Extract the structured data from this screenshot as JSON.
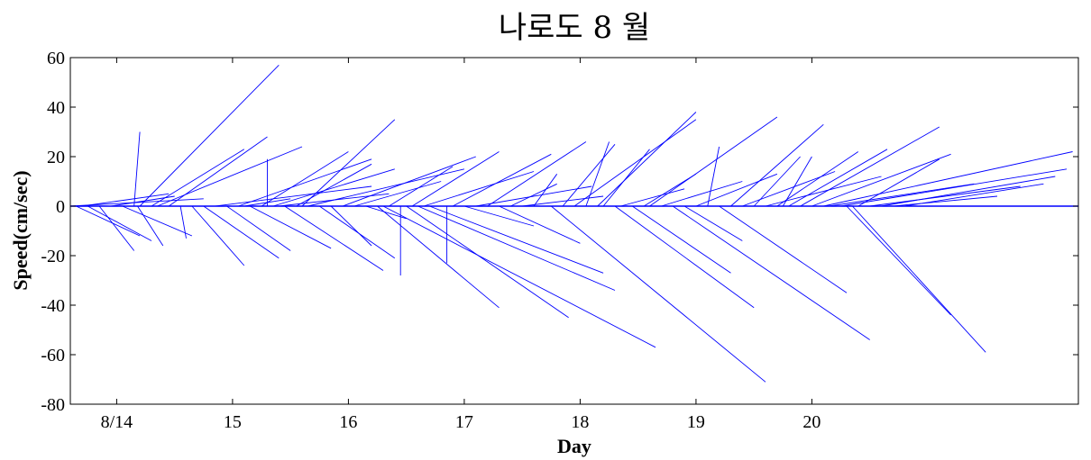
{
  "chart_data": {
    "type": "line",
    "subtype": "stick-vector",
    "title": "나로도 8 월",
    "xlabel": "Day",
    "ylabel": "Speed(cm/sec)",
    "xlim": [
      13.6,
      22.3
    ],
    "ylim": [
      -80,
      60
    ],
    "x_ticks": [
      {
        "value": 14,
        "label": "8/14"
      },
      {
        "value": 15,
        "label": "15"
      },
      {
        "value": 16,
        "label": "16"
      },
      {
        "value": 17,
        "label": "17"
      },
      {
        "value": 18,
        "label": "18"
      },
      {
        "value": 19,
        "label": "19"
      },
      {
        "value": 20,
        "label": "20"
      }
    ],
    "y_ticks": [
      {
        "value": 60,
        "label": "60"
      },
      {
        "value": 40,
        "label": "40"
      },
      {
        "value": 20,
        "label": "20"
      },
      {
        "value": 0,
        "label": "0"
      },
      {
        "value": -20,
        "label": "-20"
      },
      {
        "value": -40,
        "label": "-40"
      },
      {
        "value": -60,
        "label": "-60"
      },
      {
        "value": -80,
        "label": "-80"
      }
    ],
    "grid": false,
    "line_color": "#0000ff",
    "series": [
      {
        "values": [
          {
            "x": 13.6,
            "x2": 14.75,
            "y2": 3
          },
          {
            "x": 13.65,
            "x2": 14.2,
            "y2": -12
          },
          {
            "x": 13.7,
            "x2": 14.45,
            "y2": 5
          },
          {
            "x": 13.75,
            "x2": 14.3,
            "y2": -14
          },
          {
            "x": 13.85,
            "x2": 14.15,
            "y2": -18
          },
          {
            "x": 13.95,
            "x2": 14.5,
            "y2": 4
          },
          {
            "x": 14.05,
            "x2": 14.65,
            "y2": -12
          },
          {
            "x": 14.15,
            "x2": 14.2,
            "y2": 30
          },
          {
            "x": 14.18,
            "x2": 14.4,
            "y2": -16
          },
          {
            "x": 14.2,
            "x2": 15.4,
            "y2": 57
          },
          {
            "x": 14.3,
            "x2": 15.1,
            "y2": 23
          },
          {
            "x": 14.35,
            "x2": 15.6,
            "y2": 24
          },
          {
            "x": 14.45,
            "x2": 15.3,
            "y2": 28
          },
          {
            "x": 14.55,
            "x2": 14.6,
            "y2": -13
          },
          {
            "x": 14.65,
            "x2": 15.1,
            "y2": -24
          },
          {
            "x": 14.75,
            "x2": 15.4,
            "y2": -21
          },
          {
            "x": 14.85,
            "x2": 16.2,
            "y2": 8
          },
          {
            "x": 14.95,
            "x2": 15.5,
            "y2": -18
          },
          {
            "x": 15.05,
            "x2": 16.2,
            "y2": 19
          },
          {
            "x": 15.1,
            "x2": 15.5,
            "y2": 3
          },
          {
            "x": 15.15,
            "x2": 15.85,
            "y2": -17
          },
          {
            "x": 15.25,
            "x2": 16.0,
            "y2": 22
          },
          {
            "x": 15.3,
            "x2": 15.3,
            "y2": 19
          },
          {
            "x": 15.35,
            "x2": 16.4,
            "y2": 15
          },
          {
            "x": 15.4,
            "x2": 16.35,
            "y2": 5
          },
          {
            "x": 15.45,
            "x2": 16.3,
            "y2": -26
          },
          {
            "x": 15.55,
            "x2": 16.2,
            "y2": 17
          },
          {
            "x": 15.6,
            "x2": 16.4,
            "y2": 35
          },
          {
            "x": 15.65,
            "x2": 17.0,
            "y2": 15
          },
          {
            "x": 15.75,
            "x2": 16.4,
            "y2": -21
          },
          {
            "x": 15.85,
            "x2": 16.2,
            "y2": -16
          },
          {
            "x": 15.95,
            "x2": 17.1,
            "y2": 20
          },
          {
            "x": 16.05,
            "x2": 16.8,
            "y2": 10
          },
          {
            "x": 16.15,
            "x2": 16.5,
            "y2": -5
          },
          {
            "x": 16.25,
            "x2": 17.3,
            "y2": -41
          },
          {
            "x": 16.3,
            "x2": 18.65,
            "y2": -57
          },
          {
            "x": 16.35,
            "x2": 16.9,
            "y2": 16
          },
          {
            "x": 16.45,
            "x2": 16.45,
            "y2": -28
          },
          {
            "x": 16.5,
            "x2": 17.9,
            "y2": -45
          },
          {
            "x": 16.55,
            "x2": 17.3,
            "y2": 22
          },
          {
            "x": 16.6,
            "x2": 18.3,
            "y2": -34
          },
          {
            "x": 16.65,
            "x2": 17.6,
            "y2": 14
          },
          {
            "x": 16.7,
            "x2": 18.2,
            "y2": -27
          },
          {
            "x": 16.85,
            "x2": 16.85,
            "y2": -23
          },
          {
            "x": 16.9,
            "x2": 17.75,
            "y2": 21
          },
          {
            "x": 17.0,
            "x2": 17.6,
            "y2": -8
          },
          {
            "x": 17.1,
            "x2": 18.1,
            "y2": 8
          },
          {
            "x": 17.2,
            "x2": 18.05,
            "y2": 26
          },
          {
            "x": 17.3,
            "x2": 18.0,
            "y2": -15
          },
          {
            "x": 17.4,
            "x2": 17.8,
            "y2": 9
          },
          {
            "x": 17.5,
            "x2": 18.2,
            "y2": 4
          },
          {
            "x": 17.6,
            "x2": 17.8,
            "y2": 13
          },
          {
            "x": 17.75,
            "x2": 19.6,
            "y2": -71
          },
          {
            "x": 17.85,
            "x2": 18.3,
            "y2": 25
          },
          {
            "x": 17.95,
            "x2": 19.0,
            "y2": 35
          },
          {
            "x": 18.05,
            "x2": 18.25,
            "y2": 26
          },
          {
            "x": 18.15,
            "x2": 19.0,
            "y2": 38
          },
          {
            "x": 18.2,
            "x2": 18.6,
            "y2": 23
          },
          {
            "x": 18.3,
            "x2": 19.5,
            "y2": -41
          },
          {
            "x": 18.35,
            "x2": 18.9,
            "y2": 7
          },
          {
            "x": 18.45,
            "x2": 19.3,
            "y2": -27
          },
          {
            "x": 18.55,
            "x2": 19.0,
            "y2": 13
          },
          {
            "x": 18.6,
            "x2": 19.7,
            "y2": 36
          },
          {
            "x": 18.7,
            "x2": 19.4,
            "y2": 10
          },
          {
            "x": 18.8,
            "x2": 20.5,
            "y2": -54
          },
          {
            "x": 18.9,
            "x2": 19.4,
            "y2": -14
          },
          {
            "x": 19.0,
            "x2": 19.7,
            "y2": 13
          },
          {
            "x": 19.1,
            "x2": 19.2,
            "y2": 24
          },
          {
            "x": 19.2,
            "x2": 20.3,
            "y2": -35
          },
          {
            "x": 19.3,
            "x2": 20.1,
            "y2": 33
          },
          {
            "x": 19.4,
            "x2": 20.2,
            "y2": 14
          },
          {
            "x": 19.5,
            "x2": 19.9,
            "y2": 20
          },
          {
            "x": 19.6,
            "x2": 20.6,
            "y2": 12
          },
          {
            "x": 19.7,
            "x2": 20.4,
            "y2": 22
          },
          {
            "x": 19.75,
            "x2": 20.0,
            "y2": 20
          },
          {
            "x": 19.8,
            "x2": 20.65,
            "y2": 23
          },
          {
            "x": 19.9,
            "x2": 21.1,
            "y2": 32
          },
          {
            "x": 20.0,
            "x2": 21.2,
            "y2": 21
          },
          {
            "x": 20.1,
            "x2": 22.25,
            "y2": 22
          },
          {
            "x": 20.15,
            "x2": 21.4,
            "y2": 9
          },
          {
            "x": 20.25,
            "x2": 22.2,
            "y2": 15
          },
          {
            "x": 20.3,
            "x2": 21.2,
            "y2": -44
          },
          {
            "x": 20.35,
            "x2": 21.5,
            "y2": -59
          },
          {
            "x": 20.4,
            "x2": 21.1,
            "y2": 19
          },
          {
            "x": 20.5,
            "x2": 21.8,
            "y2": 8
          },
          {
            "x": 20.6,
            "x2": 22.1,
            "y2": 12
          },
          {
            "x": 20.7,
            "x2": 21.6,
            "y2": 4
          },
          {
            "x": 20.8,
            "x2": 22.0,
            "y2": 9
          }
        ]
      }
    ]
  }
}
